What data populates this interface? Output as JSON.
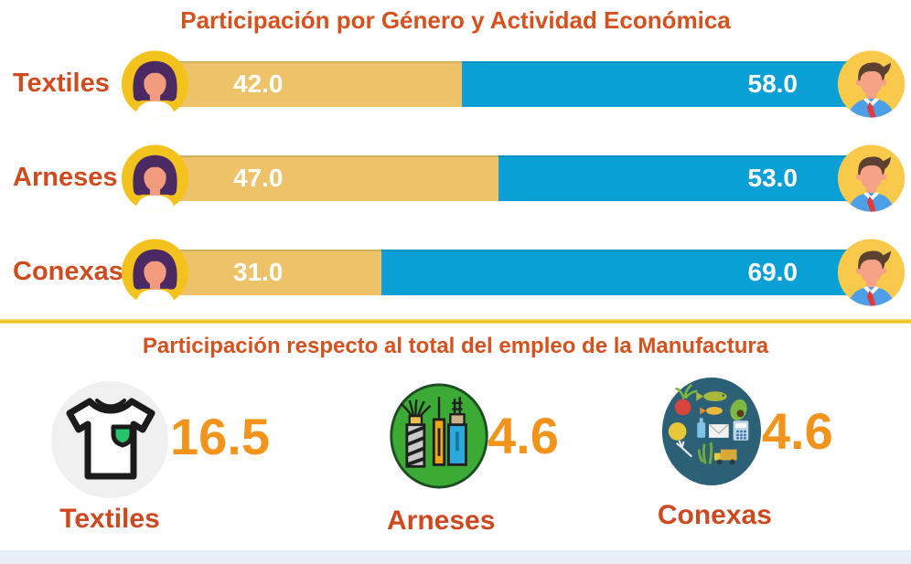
{
  "page": {
    "background": "#ffffff",
    "divider_color": "#eec11f",
    "footer_strip_color": "#e9eff6"
  },
  "gender_chart": {
    "title": "Participación por Género y Actividad Económica",
    "female_color": "#edc269",
    "male_color": "#0aa0d6",
    "rows": [
      {
        "label": "Textiles",
        "female_value": "42.0",
        "male_value": "58.0",
        "female_pct": 42,
        "male_pct": 58
      },
      {
        "label": "Arneses",
        "female_value": "47.0",
        "male_value": "53.0",
        "female_pct": 47,
        "male_pct": 53
      },
      {
        "label": "Conexas",
        "female_value": "31.0",
        "male_value": "69.0",
        "female_pct": 31,
        "male_pct": 69
      }
    ]
  },
  "employment_chart": {
    "title": "Participación respecto al total del empleo de la Manufactura",
    "items": [
      {
        "label": "Textiles",
        "value": "16.5",
        "icon": "tshirt-icon"
      },
      {
        "label": "Arneses",
        "value": "4.6",
        "icon": "wire-harness-icon"
      },
      {
        "label": "Conexas",
        "value": "4.6",
        "icon": "related-goods-icon"
      }
    ]
  },
  "chart_data": [
    {
      "type": "bar",
      "orientation": "horizontal",
      "stacked": true,
      "title": "Participación por Género y Actividad Económica",
      "categories": [
        "Textiles",
        "Arneses",
        "Conexas"
      ],
      "series": [
        {
          "name": "female",
          "values": [
            42.0,
            47.0,
            31.0
          ],
          "color": "#edc269",
          "icon": "female-avatar"
        },
        {
          "name": "male",
          "values": [
            58.0,
            53.0,
            69.0
          ],
          "color": "#0aa0d6",
          "icon": "male-avatar"
        }
      ],
      "xlim": [
        0,
        100
      ],
      "grid": false,
      "legend": "avatar icons at bar ends",
      "data_labels": [
        "42.0",
        "58.0",
        "47.0",
        "53.0",
        "31.0",
        "69.0"
      ]
    },
    {
      "type": "bar",
      "subtype": "icon-values",
      "title": "Participación respecto al total del empleo de la Manufactura",
      "categories": [
        "Textiles",
        "Arneses",
        "Conexas"
      ],
      "values": [
        16.5,
        4.6,
        4.6
      ],
      "icons": [
        "tshirt",
        "wire-harness",
        "related-goods"
      ],
      "value_color": "#f2941c",
      "label_color": "#ce491f"
    }
  ]
}
